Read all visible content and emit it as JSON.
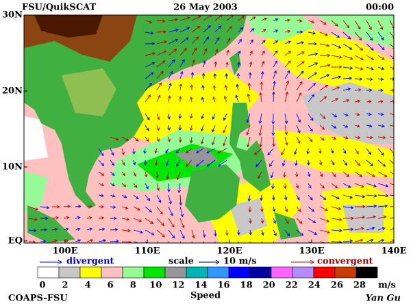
{
  "header": {
    "title": "FSU/QuikSCAT",
    "date": "26 May 2003",
    "time": "00:00"
  },
  "map": {
    "lat_labels": [
      "30N",
      "20N",
      "10N",
      "EQ"
    ],
    "lon_labels": [
      "100E",
      "110E",
      "120E",
      "130E",
      "140E"
    ]
  },
  "legend": {
    "divergent": "divergent",
    "scale": "scale",
    "scale_value": "10 m/s",
    "convergent": "convergent"
  },
  "colorbar": {
    "labels": [
      0,
      2,
      4,
      6,
      8,
      10,
      12,
      14,
      16,
      18,
      20,
      22,
      24,
      26,
      28
    ],
    "unit": "m/s",
    "title": "Speed",
    "colors": [
      "#ffffff",
      "#c8c8c8",
      "#ffff00",
      "#ffc0c0",
      "#96fa96",
      "#00e600",
      "#969696",
      "#00b4b4",
      "#3296ff",
      "#0000ff",
      "#0000a0",
      "#ff64ff",
      "#b48cff",
      "#ff0000",
      "#c83c00",
      "#000000"
    ]
  },
  "footer": {
    "source": "COAPS-FSU",
    "author": "Yan Gu"
  }
}
